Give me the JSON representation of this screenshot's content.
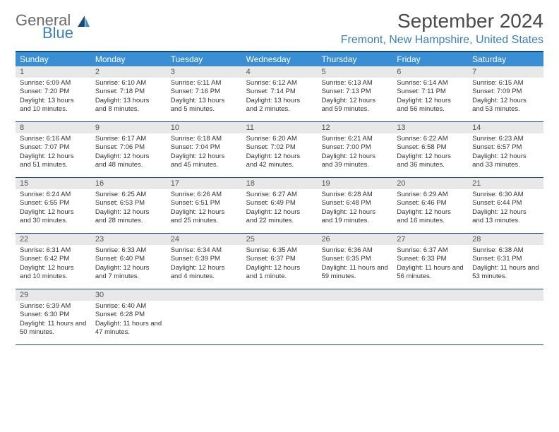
{
  "logo": {
    "text1": "General",
    "text2": "Blue"
  },
  "title": "September 2024",
  "location": "Fremont, New Hampshire, United States",
  "colors": {
    "header_bg": "#3a8fd4",
    "header_border": "#174a7c",
    "daynum_bg": "#e8e8e8",
    "logo_gray": "#6b6b6b",
    "logo_blue": "#3a7fc4"
  },
  "day_names": [
    "Sunday",
    "Monday",
    "Tuesday",
    "Wednesday",
    "Thursday",
    "Friday",
    "Saturday"
  ],
  "weeks": [
    [
      {
        "n": "1",
        "sunrise": "6:09 AM",
        "sunset": "7:20 PM",
        "daylight": "13 hours and 10 minutes."
      },
      {
        "n": "2",
        "sunrise": "6:10 AM",
        "sunset": "7:18 PM",
        "daylight": "13 hours and 8 minutes."
      },
      {
        "n": "3",
        "sunrise": "6:11 AM",
        "sunset": "7:16 PM",
        "daylight": "13 hours and 5 minutes."
      },
      {
        "n": "4",
        "sunrise": "6:12 AM",
        "sunset": "7:14 PM",
        "daylight": "13 hours and 2 minutes."
      },
      {
        "n": "5",
        "sunrise": "6:13 AM",
        "sunset": "7:13 PM",
        "daylight": "12 hours and 59 minutes."
      },
      {
        "n": "6",
        "sunrise": "6:14 AM",
        "sunset": "7:11 PM",
        "daylight": "12 hours and 56 minutes."
      },
      {
        "n": "7",
        "sunrise": "6:15 AM",
        "sunset": "7:09 PM",
        "daylight": "12 hours and 53 minutes."
      }
    ],
    [
      {
        "n": "8",
        "sunrise": "6:16 AM",
        "sunset": "7:07 PM",
        "daylight": "12 hours and 51 minutes."
      },
      {
        "n": "9",
        "sunrise": "6:17 AM",
        "sunset": "7:06 PM",
        "daylight": "12 hours and 48 minutes."
      },
      {
        "n": "10",
        "sunrise": "6:18 AM",
        "sunset": "7:04 PM",
        "daylight": "12 hours and 45 minutes."
      },
      {
        "n": "11",
        "sunrise": "6:20 AM",
        "sunset": "7:02 PM",
        "daylight": "12 hours and 42 minutes."
      },
      {
        "n": "12",
        "sunrise": "6:21 AM",
        "sunset": "7:00 PM",
        "daylight": "12 hours and 39 minutes."
      },
      {
        "n": "13",
        "sunrise": "6:22 AM",
        "sunset": "6:58 PM",
        "daylight": "12 hours and 36 minutes."
      },
      {
        "n": "14",
        "sunrise": "6:23 AM",
        "sunset": "6:57 PM",
        "daylight": "12 hours and 33 minutes."
      }
    ],
    [
      {
        "n": "15",
        "sunrise": "6:24 AM",
        "sunset": "6:55 PM",
        "daylight": "12 hours and 30 minutes."
      },
      {
        "n": "16",
        "sunrise": "6:25 AM",
        "sunset": "6:53 PM",
        "daylight": "12 hours and 28 minutes."
      },
      {
        "n": "17",
        "sunrise": "6:26 AM",
        "sunset": "6:51 PM",
        "daylight": "12 hours and 25 minutes."
      },
      {
        "n": "18",
        "sunrise": "6:27 AM",
        "sunset": "6:49 PM",
        "daylight": "12 hours and 22 minutes."
      },
      {
        "n": "19",
        "sunrise": "6:28 AM",
        "sunset": "6:48 PM",
        "daylight": "12 hours and 19 minutes."
      },
      {
        "n": "20",
        "sunrise": "6:29 AM",
        "sunset": "6:46 PM",
        "daylight": "12 hours and 16 minutes."
      },
      {
        "n": "21",
        "sunrise": "6:30 AM",
        "sunset": "6:44 PM",
        "daylight": "12 hours and 13 minutes."
      }
    ],
    [
      {
        "n": "22",
        "sunrise": "6:31 AM",
        "sunset": "6:42 PM",
        "daylight": "12 hours and 10 minutes."
      },
      {
        "n": "23",
        "sunrise": "6:33 AM",
        "sunset": "6:40 PM",
        "daylight": "12 hours and 7 minutes."
      },
      {
        "n": "24",
        "sunrise": "6:34 AM",
        "sunset": "6:39 PM",
        "daylight": "12 hours and 4 minutes."
      },
      {
        "n": "25",
        "sunrise": "6:35 AM",
        "sunset": "6:37 PM",
        "daylight": "12 hours and 1 minute."
      },
      {
        "n": "26",
        "sunrise": "6:36 AM",
        "sunset": "6:35 PM",
        "daylight": "11 hours and 59 minutes."
      },
      {
        "n": "27",
        "sunrise": "6:37 AM",
        "sunset": "6:33 PM",
        "daylight": "11 hours and 56 minutes."
      },
      {
        "n": "28",
        "sunrise": "6:38 AM",
        "sunset": "6:31 PM",
        "daylight": "11 hours and 53 minutes."
      }
    ],
    [
      {
        "n": "29",
        "sunrise": "6:39 AM",
        "sunset": "6:30 PM",
        "daylight": "11 hours and 50 minutes."
      },
      {
        "n": "30",
        "sunrise": "6:40 AM",
        "sunset": "6:28 PM",
        "daylight": "11 hours and 47 minutes."
      },
      null,
      null,
      null,
      null,
      null
    ]
  ],
  "labels": {
    "sunrise": "Sunrise:",
    "sunset": "Sunset:",
    "daylight": "Daylight:"
  }
}
